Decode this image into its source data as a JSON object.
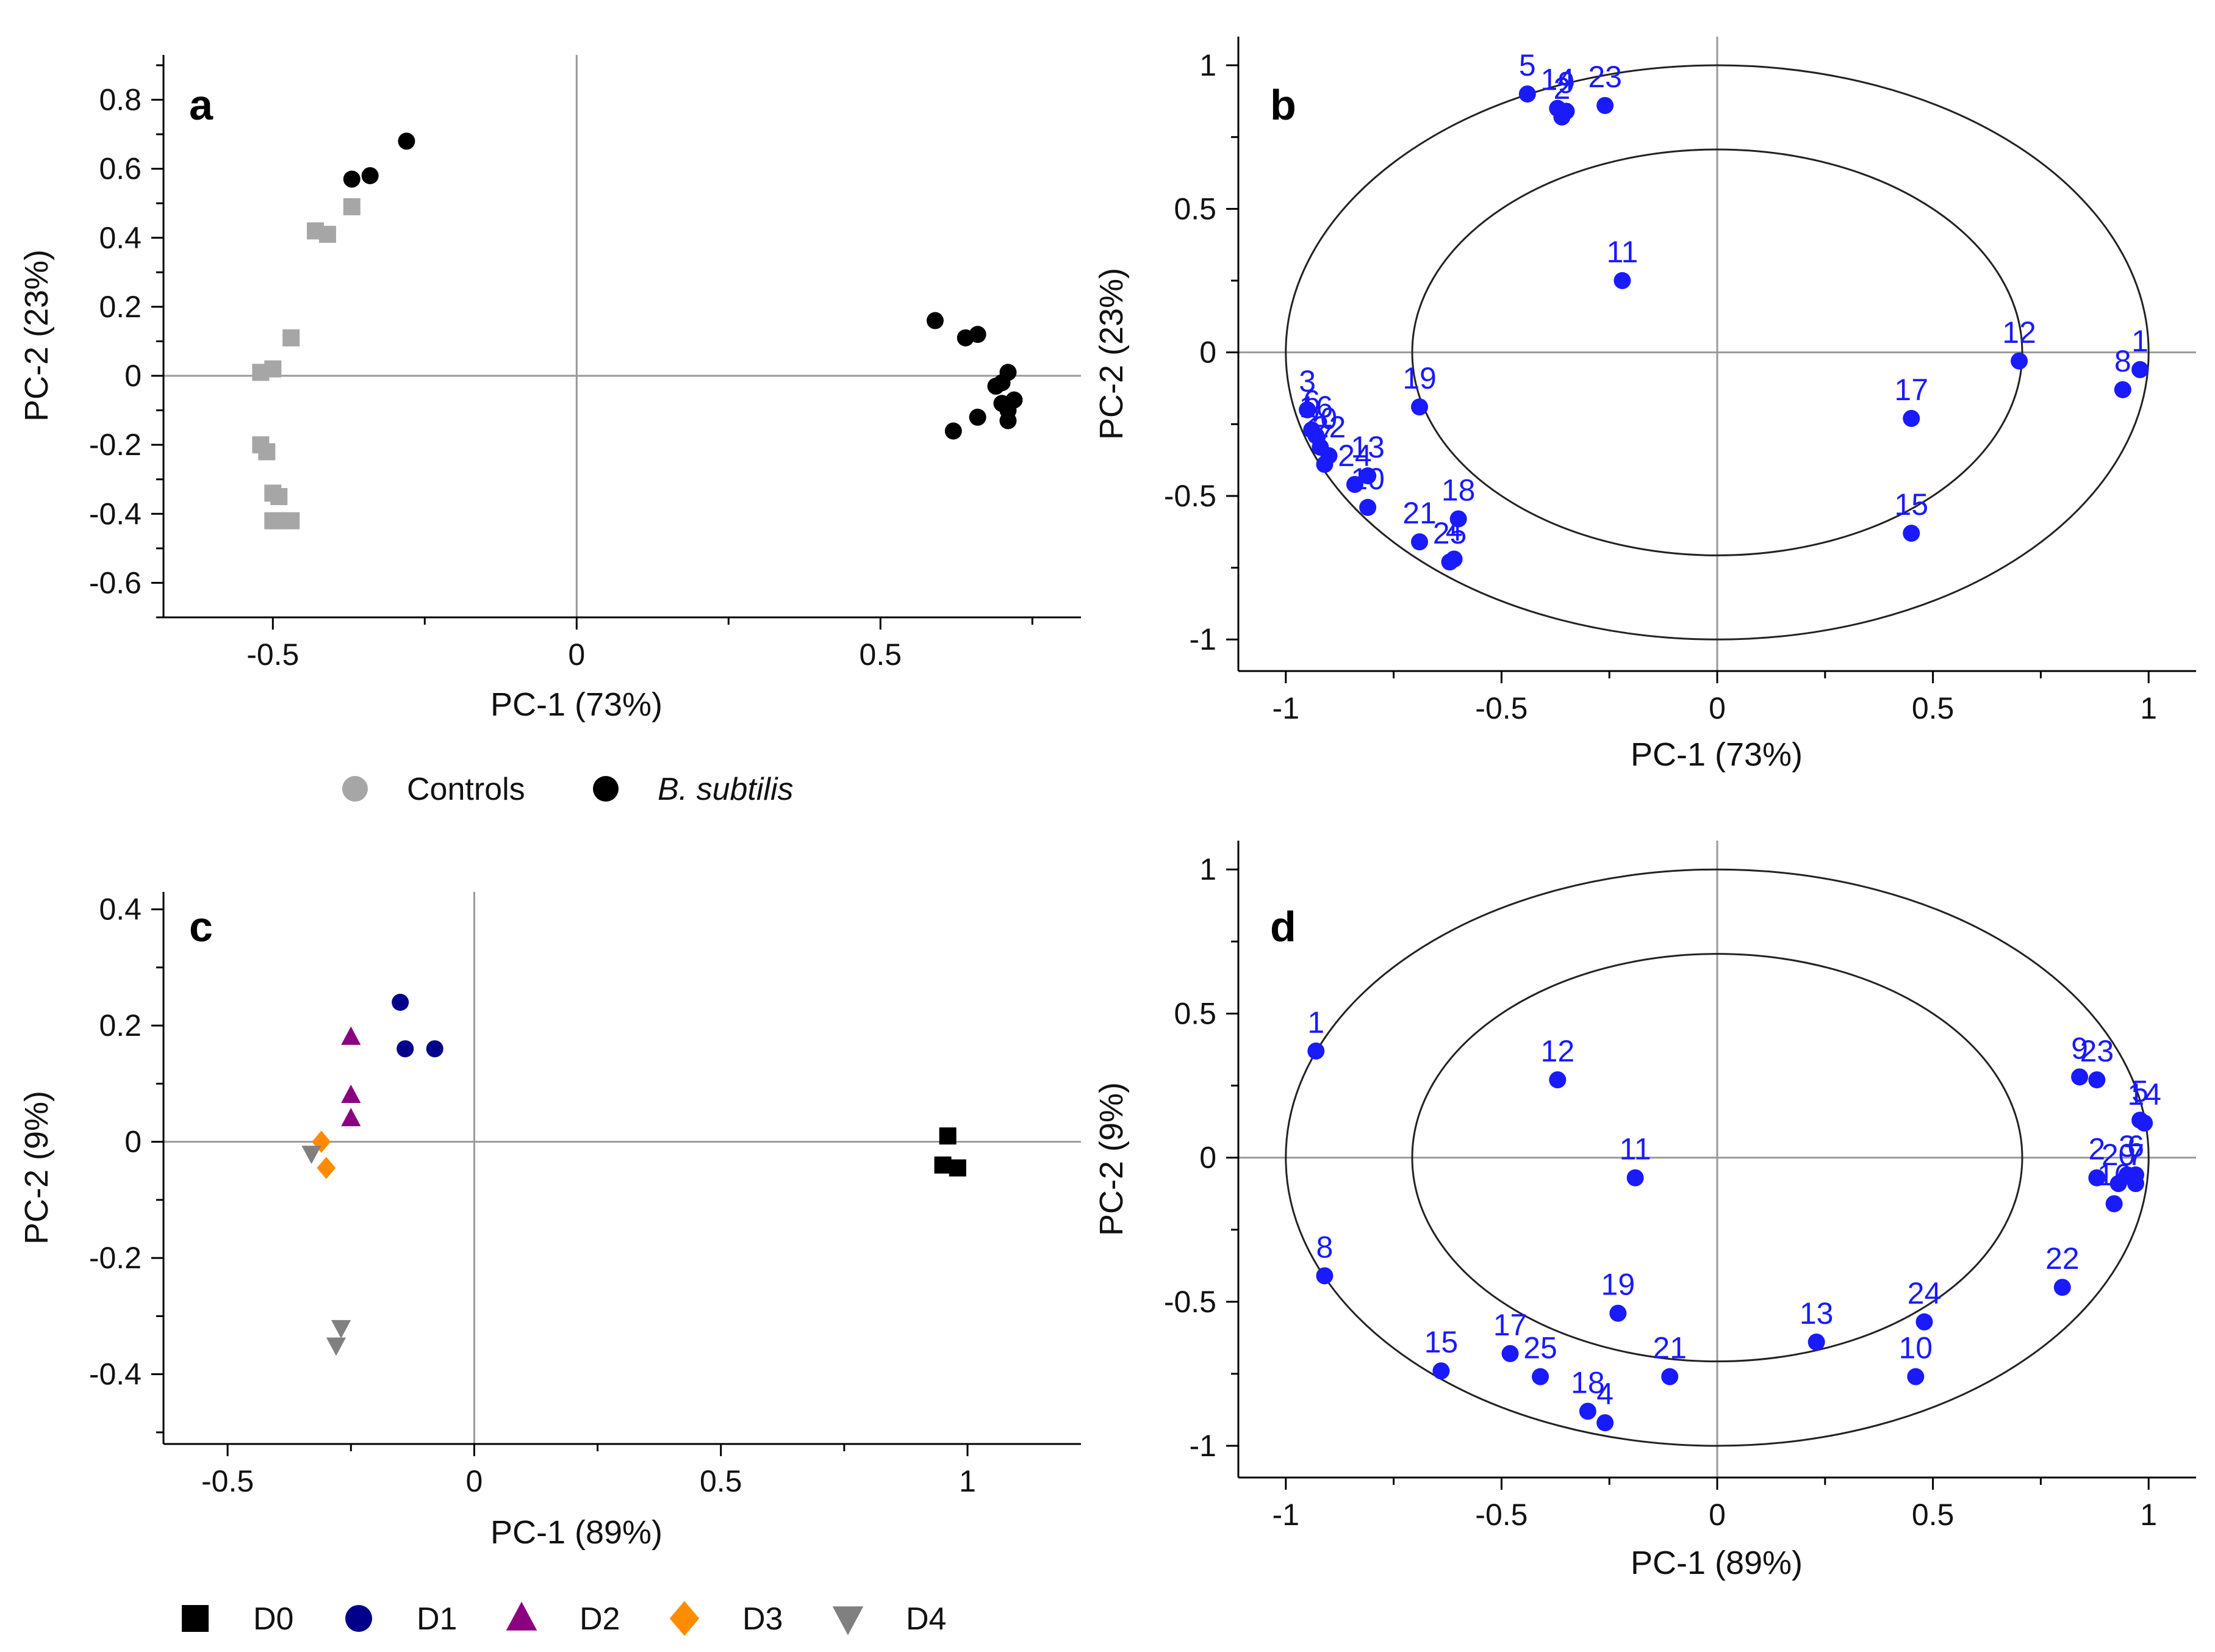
{
  "colors": {
    "controls": "#a6a6a6",
    "bsubtilis": "#000000",
    "loading": "#1a1aff",
    "D0": "#000000",
    "D1": "#00008b",
    "D2": "#8b0080",
    "D3": "#ff8c00",
    "D4": "#808080",
    "zero_line": "#999999",
    "axis": "#000000"
  },
  "legend_ab": {
    "items": [
      {
        "label": "Controls",
        "marker": "circle",
        "color": "#a6a6a6"
      },
      {
        "label": "B. subtilis",
        "marker": "circle",
        "color": "#000000"
      }
    ]
  },
  "legend_cd": {
    "items": [
      {
        "label": "D0",
        "marker": "square",
        "color": "#000000"
      },
      {
        "label": "D1",
        "marker": "circle",
        "color": "#00008b"
      },
      {
        "label": "D2",
        "marker": "triangle-up",
        "color": "#8b0080"
      },
      {
        "label": "D3",
        "marker": "diamond",
        "color": "#ff8c00"
      },
      {
        "label": "D4",
        "marker": "triangle-down",
        "color": "#808080"
      }
    ]
  },
  "chart_data": [
    {
      "panel": "a",
      "type": "scatter",
      "xlabel": "PC-1 (73%)",
      "ylabel": "PC-2 (23%)",
      "xlim": [
        -0.68,
        0.83
      ],
      "ylim": [
        -0.7,
        0.93
      ],
      "xticks": [
        -0.5,
        0,
        0.5
      ],
      "xtick_labels": [
        "-0.5",
        "0",
        "0.5"
      ],
      "yticks": [
        -0.6,
        -0.4,
        -0.2,
        0,
        0.2,
        0.4,
        0.6,
        0.8
      ],
      "ytick_labels": [
        "-0.6",
        "-0.4",
        "-0.2",
        "0",
        "0.2",
        "0.4",
        "0.6",
        "0.8"
      ],
      "series": [
        {
          "name": "Controls",
          "marker": "square",
          "color": "#a6a6a6",
          "points": [
            [
              -0.43,
              0.42
            ],
            [
              -0.41,
              0.41
            ],
            [
              -0.37,
              0.49
            ],
            [
              -0.47,
              0.11
            ],
            [
              -0.5,
              0.02
            ],
            [
              -0.52,
              0.01
            ],
            [
              -0.52,
              -0.2
            ],
            [
              -0.51,
              -0.22
            ],
            [
              -0.5,
              -0.34
            ],
            [
              -0.49,
              -0.35
            ],
            [
              -0.49,
              -0.42
            ],
            [
              -0.47,
              -0.42
            ],
            [
              -0.5,
              -0.42
            ]
          ]
        },
        {
          "name": "B. subtilis",
          "marker": "circle",
          "color": "#000000",
          "points": [
            [
              -0.37,
              0.57
            ],
            [
              -0.34,
              0.58
            ],
            [
              -0.28,
              0.68
            ],
            [
              0.59,
              0.16
            ],
            [
              0.64,
              0.11
            ],
            [
              0.66,
              0.12
            ],
            [
              0.62,
              -0.16
            ],
            [
              0.66,
              -0.12
            ],
            [
              0.69,
              -0.03
            ],
            [
              0.7,
              -0.02
            ],
            [
              0.71,
              0.01
            ],
            [
              0.7,
              -0.08
            ],
            [
              0.71,
              -0.1
            ],
            [
              0.72,
              -0.07
            ],
            [
              0.71,
              -0.13
            ]
          ]
        }
      ]
    },
    {
      "panel": "b",
      "type": "scatter",
      "xlabel": "PC-1 (73%)",
      "ylabel": "PC-2 (23%)",
      "xlim": [
        -1.11,
        1.11
      ],
      "ylim": [
        -1.11,
        1.1
      ],
      "xticks": [
        -1,
        -0.5,
        0,
        0.5,
        1
      ],
      "xtick_labels": [
        "-1",
        "-0.5",
        "0",
        "0.5",
        "1"
      ],
      "yticks": [
        -1,
        -0.5,
        0,
        0.5,
        1
      ],
      "ytick_labels": [
        "-1",
        "-0.5",
        "0",
        "0.5",
        "1"
      ],
      "ellipses": [
        1.0,
        0.707
      ],
      "points": [
        {
          "label": "5",
          "x": -0.44,
          "y": 0.9
        },
        {
          "label": "14",
          "x": -0.37,
          "y": 0.85
        },
        {
          "label": "2",
          "x": -0.36,
          "y": 0.82
        },
        {
          "label": "9",
          "x": -0.35,
          "y": 0.84
        },
        {
          "label": "23",
          "x": -0.26,
          "y": 0.86
        },
        {
          "label": "11",
          "x": -0.22,
          "y": 0.25
        },
        {
          "label": "12",
          "x": 0.7,
          "y": -0.03
        },
        {
          "label": "8",
          "x": 0.94,
          "y": -0.13
        },
        {
          "label": "1",
          "x": 0.98,
          "y": -0.06
        },
        {
          "label": "17",
          "x": 0.45,
          "y": -0.23
        },
        {
          "label": "15",
          "x": 0.45,
          "y": -0.63
        },
        {
          "label": "19",
          "x": -0.69,
          "y": -0.19
        },
        {
          "label": "3",
          "x": -0.95,
          "y": -0.2
        },
        {
          "label": "6",
          "x": -0.94,
          "y": -0.27
        },
        {
          "label": "16",
          "x": -0.93,
          "y": -0.29
        },
        {
          "label": "20",
          "x": -0.92,
          "y": -0.33
        },
        {
          "label": "22",
          "x": -0.9,
          "y": -0.36
        },
        {
          "label": "7",
          "x": -0.91,
          "y": -0.39
        },
        {
          "label": "24",
          "x": -0.84,
          "y": -0.46
        },
        {
          "label": "13",
          "x": -0.81,
          "y": -0.43
        },
        {
          "label": "10",
          "x": -0.81,
          "y": -0.54
        },
        {
          "label": "21",
          "x": -0.69,
          "y": -0.66
        },
        {
          "label": "4",
          "x": -0.61,
          "y": -0.72
        },
        {
          "label": "25",
          "x": -0.62,
          "y": -0.73
        },
        {
          "label": "18",
          "x": -0.6,
          "y": -0.58
        }
      ]
    },
    {
      "panel": "c",
      "type": "scatter",
      "xlabel": "PC-1 (89%)",
      "ylabel": "PC-2 (9%)",
      "xlim": [
        -0.63,
        1.23
      ],
      "ylim": [
        -0.52,
        0.43
      ],
      "xticks": [
        -0.5,
        0,
        0.5,
        1
      ],
      "xtick_labels": [
        "-0.5",
        "0",
        "0.5",
        "1"
      ],
      "yticks": [
        -0.4,
        -0.2,
        0,
        0.2,
        0.4
      ],
      "ytick_labels": [
        "-0.4",
        "-0.2",
        "0",
        "0.2",
        "0.4"
      ],
      "series": [
        {
          "name": "D0",
          "marker": "square",
          "color": "#000000",
          "points": [
            [
              0.96,
              0.01
            ],
            [
              0.95,
              -0.04
            ],
            [
              0.98,
              -0.045
            ]
          ]
        },
        {
          "name": "D1",
          "marker": "circle",
          "color": "#00008b",
          "points": [
            [
              -0.15,
              0.24
            ],
            [
              -0.14,
              0.16
            ],
            [
              -0.08,
              0.16
            ]
          ]
        },
        {
          "name": "D2",
          "marker": "triangle-up",
          "color": "#8b0080",
          "points": [
            [
              -0.25,
              0.18
            ],
            [
              -0.25,
              0.08
            ],
            [
              -0.25,
              0.04
            ]
          ]
        },
        {
          "name": "D3",
          "marker": "diamond",
          "color": "#ff8c00",
          "points": [
            [
              -0.31,
              0.0
            ],
            [
              -0.3,
              -0.045
            ]
          ]
        },
        {
          "name": "D4",
          "marker": "triangle-down",
          "color": "#808080",
          "points": [
            [
              -0.33,
              -0.02
            ],
            [
              -0.27,
              -0.32
            ],
            [
              -0.28,
              -0.35
            ]
          ]
        }
      ]
    },
    {
      "panel": "d",
      "type": "scatter",
      "xlabel": "PC-1 (89%)",
      "ylabel": "PC-2 (9%)",
      "xlim": [
        -1.11,
        1.11
      ],
      "ylim": [
        -1.11,
        1.1
      ],
      "xticks": [
        -1,
        -0.5,
        0,
        0.5,
        1
      ],
      "xtick_labels": [
        "-1",
        "-0.5",
        "0",
        "0.5",
        "1"
      ],
      "yticks": [
        -1,
        -0.5,
        0,
        0.5,
        1
      ],
      "ytick_labels": [
        "-1",
        "-0.5",
        "0",
        "0.5",
        "1"
      ],
      "ellipses": [
        1.0,
        0.707
      ],
      "points": [
        {
          "label": "1",
          "x": -0.93,
          "y": 0.37
        },
        {
          "label": "8",
          "x": -0.91,
          "y": -0.41
        },
        {
          "label": "12",
          "x": -0.37,
          "y": 0.27
        },
        {
          "label": "11",
          "x": -0.19,
          "y": -0.07
        },
        {
          "label": "19",
          "x": -0.23,
          "y": -0.54
        },
        {
          "label": "21",
          "x": -0.11,
          "y": -0.76
        },
        {
          "label": "15",
          "x": -0.64,
          "y": -0.74
        },
        {
          "label": "17",
          "x": -0.48,
          "y": -0.68
        },
        {
          "label": "25",
          "x": -0.41,
          "y": -0.76
        },
        {
          "label": "18",
          "x": -0.3,
          "y": -0.88
        },
        {
          "label": "4",
          "x": -0.26,
          "y": -0.92
        },
        {
          "label": "13",
          "x": 0.23,
          "y": -0.64
        },
        {
          "label": "24",
          "x": 0.48,
          "y": -0.57
        },
        {
          "label": "10",
          "x": 0.46,
          "y": -0.76
        },
        {
          "label": "22",
          "x": 0.8,
          "y": -0.45
        },
        {
          "label": "9",
          "x": 0.84,
          "y": 0.28
        },
        {
          "label": "23",
          "x": 0.88,
          "y": 0.27
        },
        {
          "label": "5",
          "x": 0.98,
          "y": 0.13
        },
        {
          "label": "14",
          "x": 0.99,
          "y": 0.12
        },
        {
          "label": "2",
          "x": 0.88,
          "y": -0.07
        },
        {
          "label": "3",
          "x": 0.95,
          "y": -0.06
        },
        {
          "label": "6",
          "x": 0.97,
          "y": -0.06
        },
        {
          "label": "20",
          "x": 0.93,
          "y": -0.09
        },
        {
          "label": "7",
          "x": 0.97,
          "y": -0.09
        },
        {
          "label": "16",
          "x": 0.92,
          "y": -0.16
        }
      ]
    }
  ]
}
